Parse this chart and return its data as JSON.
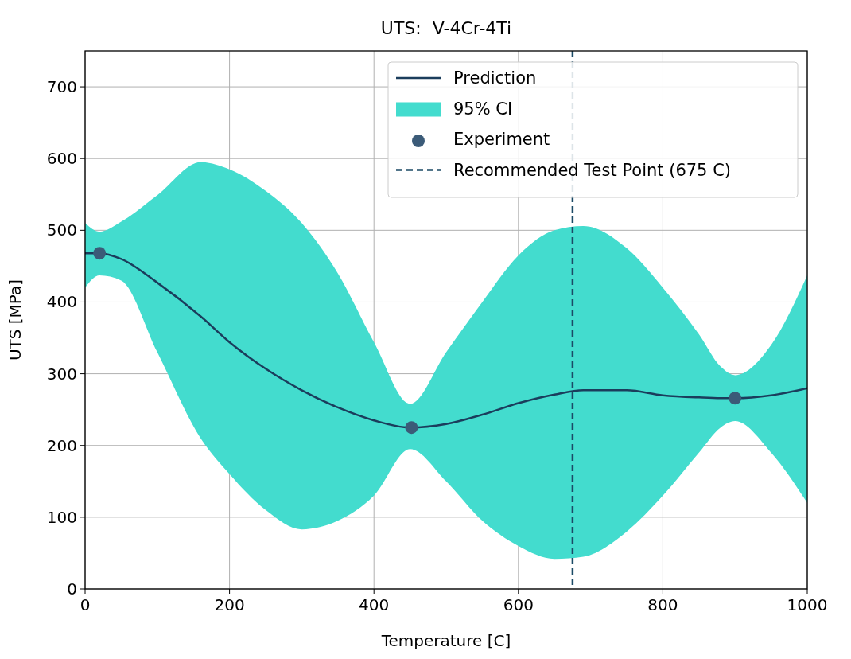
{
  "chart_data": {
    "type": "line",
    "title": "UTS:  V-4Cr-4Ti",
    "xlabel": "Temperature [C]",
    "ylabel": "UTS [MPa]",
    "xlim": [
      0,
      1000
    ],
    "ylim": [
      0,
      750
    ],
    "xticks": [
      0,
      200,
      400,
      600,
      800,
      1000
    ],
    "yticks": [
      0,
      100,
      200,
      300,
      400,
      500,
      600,
      700
    ],
    "grid": true,
    "legend": "top right",
    "annotations": [
      "95% CI"
    ],
    "series": [
      {
        "name": "Prediction",
        "color": "#1b3d5c",
        "marker": "none",
        "x": [
          0,
          20,
          50,
          100,
          160,
          200,
          250,
          300,
          350,
          400,
          450,
          500,
          550,
          600,
          650,
          690,
          750,
          800,
          850,
          880,
          900,
          950,
          1000
        ],
        "values": [
          468,
          468,
          460,
          427,
          380,
          344,
          307,
          277,
          253,
          235,
          225,
          230,
          243,
          259,
          271,
          277,
          277,
          270,
          267,
          266,
          266,
          270,
          280
        ],
        "upper": [
          510,
          498,
          512,
          549,
          595,
          585,
          555,
          510,
          440,
          344,
          258,
          330,
          400,
          465,
          500,
          506,
          475,
          420,
          355,
          310,
          298,
          340,
          437
        ],
        "lower": [
          420,
          437,
          430,
          330,
          210,
          160,
          110,
          83,
          95,
          130,
          195,
          150,
          95,
          60,
          42,
          45,
          80,
          130,
          190,
          225,
          234,
          190,
          120
        ]
      },
      {
        "name": "Experiment",
        "type": "scatter",
        "color": "#3b5b78",
        "marker": "circle",
        "x": [
          20,
          452,
          900
        ],
        "values": [
          468,
          225,
          266
        ]
      }
    ],
    "ref_lines": [
      {
        "axis": "x",
        "value": 675,
        "label": "Recommended Test Point (675 C)",
        "color": "#1b4a66",
        "line_style": "dashed"
      }
    ]
  }
}
